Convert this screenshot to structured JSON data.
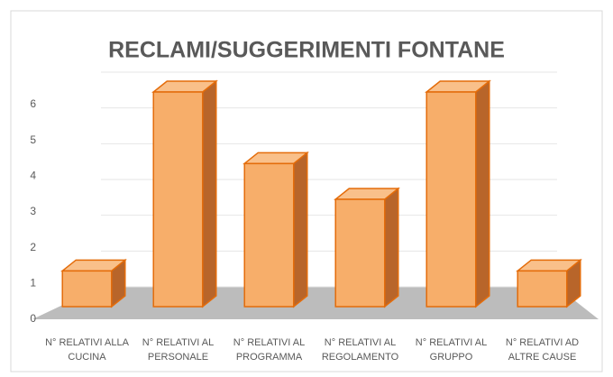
{
  "chart_data": {
    "type": "bar",
    "title": "RECLAMI/SUGGERIMENTI FONTANE",
    "categories": [
      "N° RELATIVI ALLA CUCINA",
      "N° RELATIVI AL PERSONALE",
      "N° RELATIVI AL PROGRAMMA",
      "N° RELATIVI AL REGOLAMENTO",
      "N° RELATIVI AL GRUPPO",
      "N° RELATIVI AD ALTRE CAUSE"
    ],
    "values": [
      1,
      6,
      4,
      3,
      6,
      1
    ],
    "color": "#f7ae6a",
    "ylim": [
      0,
      6
    ],
    "yticks": [
      0,
      1,
      2,
      3,
      4,
      5,
      6
    ],
    "grid": true
  }
}
